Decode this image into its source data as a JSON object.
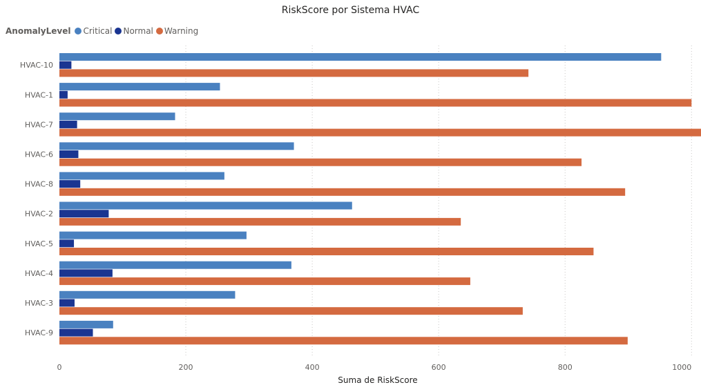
{
  "chart_data": {
    "type": "bar",
    "orientation": "horizontal",
    "title": "RiskScore por Sistema HVAC",
    "xlabel": "Suma de RiskScore",
    "ylabel": "",
    "legend_title": "AnomalyLevel",
    "legend_position": "top-left",
    "grid": true,
    "xlim": [
      0,
      1015
    ],
    "xticks": [
      0,
      200,
      400,
      600,
      800,
      1000
    ],
    "categories": [
      "HVAC-10",
      "HVAC-1",
      "HVAC-7",
      "HVAC-6",
      "HVAC-8",
      "HVAC-2",
      "HVAC-5",
      "HVAC-4",
      "HVAC-3",
      "HVAC-9"
    ],
    "series": [
      {
        "name": "Critical",
        "color": "#4a81c0",
        "values": [
          952,
          254,
          183,
          371,
          261,
          463,
          296,
          367,
          278,
          85
        ]
      },
      {
        "name": "Normal",
        "color": "#1a3591",
        "values": [
          19,
          13,
          28,
          30,
          33,
          78,
          23,
          84,
          24,
          53
        ]
      },
      {
        "name": "Warning",
        "color": "#d46a40",
        "values": [
          742,
          1000,
          1015,
          826,
          895,
          635,
          845,
          650,
          733,
          899
        ]
      }
    ]
  }
}
